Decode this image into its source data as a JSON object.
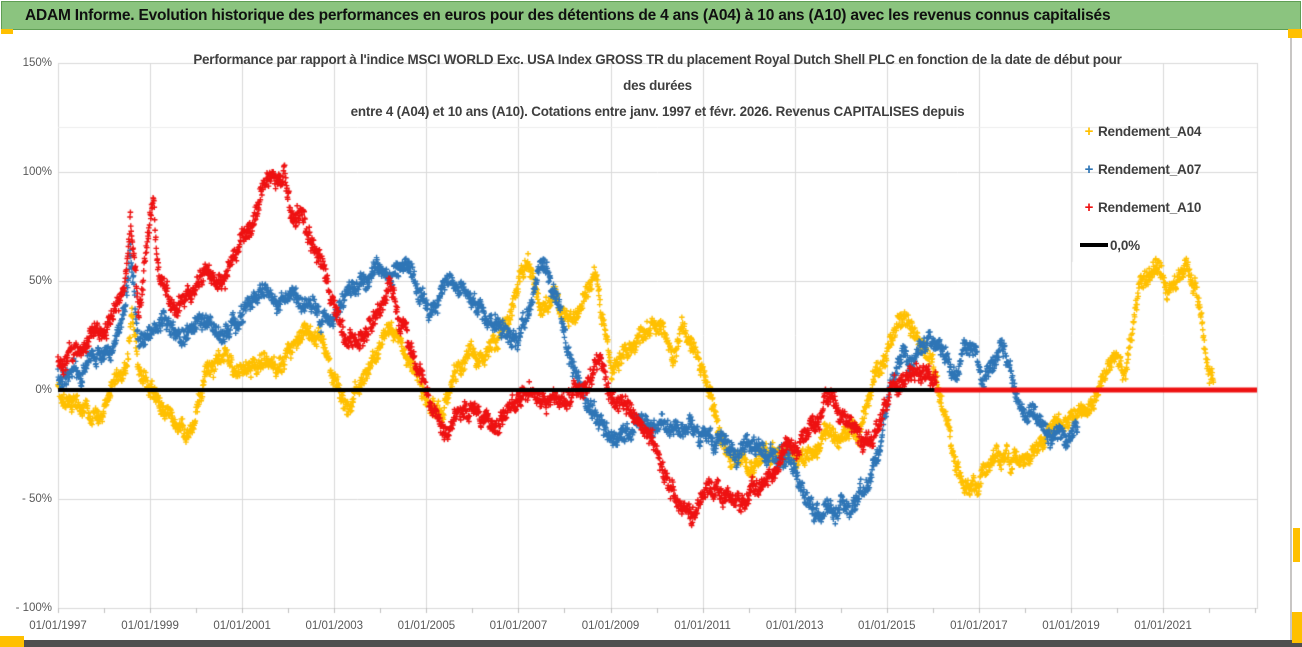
{
  "header": {
    "title": "ADAM Informe. Evolution historique des performances en euros pour des détentions de 4 ans (A04) à 10 ans (A10) avec les revenus connus capitalisés"
  },
  "chart": {
    "title_lines": [
      "Performance par rapport à l'indice MSCI WORLD Exc. USA Index GROSS TR  du placement Royal Dutch Shell PLC en fonction de la date de début pour",
      "des durées",
      "entre 4 (A04) et 10 ans (A10). Cotations entre janv. 1997 et févr. 2026. Revenus CAPITALISES depuis"
    ],
    "y_axis": {
      "unit": "%",
      "ticks": [
        {
          "value": 150,
          "label": "150%"
        },
        {
          "value": 100,
          "label": "100%"
        },
        {
          "value": 50,
          "label": "50%"
        },
        {
          "value": 0,
          "label": "0%"
        },
        {
          "value": -50,
          "label": "- 50%"
        },
        {
          "value": -100,
          "label": "- 100%"
        }
      ]
    },
    "x_axis": {
      "ticks": [
        {
          "year": 1997,
          "label": "01/01/1997"
        },
        {
          "year": 1999,
          "label": "01/01/1999"
        },
        {
          "year": 2001,
          "label": "01/01/2001"
        },
        {
          "year": 2003,
          "label": "01/01/2003"
        },
        {
          "year": 2005,
          "label": "01/01/2005"
        },
        {
          "year": 2007,
          "label": "01/01/2007"
        },
        {
          "year": 2009,
          "label": "01/01/2009"
        },
        {
          "year": 2011,
          "label": "01/01/2011"
        },
        {
          "year": 2013,
          "label": "01/01/2013"
        },
        {
          "year": 2015,
          "label": "01/01/2015"
        },
        {
          "year": 2017,
          "label": "01/01/2017"
        },
        {
          "year": 2019,
          "label": "01/01/2019"
        },
        {
          "year": 2021,
          "label": "01/01/2021"
        }
      ]
    },
    "legend": {
      "zero_line": {
        "label": "0,0%",
        "color": "#000000"
      }
    }
  },
  "chart_data": {
    "type": "scatter",
    "marker": "plus",
    "title": "Performance par rapport à l'indice MSCI WORLD Exc. USA Index GROSS TR du placement Royal Dutch Shell PLC en fonction de la date de début pour des durées entre 4 (A04) et 10 ans (A10). Cotations entre janv. 1997 et févr. 2026. Revenus CAPITALISES depuis",
    "x_axis": {
      "type": "date",
      "start": "01/01/1997",
      "end": "01/01/2023",
      "major_tick_years": 2,
      "minor_tick_years": 1,
      "grid": true
    },
    "y_axis": {
      "min": -100,
      "max": 150,
      "tick_step": 50,
      "unit": "%",
      "grid": true
    },
    "reference_line": {
      "label": "0,0%",
      "value": 0,
      "color": "#000000"
    },
    "series": [
      {
        "name": "Rendement_A04",
        "color": "#FFC000",
        "points_approx": [
          [
            1997.0,
            2
          ],
          [
            1997.3,
            -4
          ],
          [
            1997.6,
            -8
          ],
          [
            1997.9,
            -14
          ],
          [
            1998.2,
            3
          ],
          [
            1998.5,
            14
          ],
          [
            1998.6,
            38
          ],
          [
            1998.75,
            10
          ],
          [
            1999.0,
            4
          ],
          [
            1999.3,
            -6
          ],
          [
            1999.6,
            -16
          ],
          [
            1999.8,
            -22
          ],
          [
            2000.0,
            -9
          ],
          [
            2000.3,
            8
          ],
          [
            2000.6,
            15
          ],
          [
            2000.9,
            11
          ],
          [
            2001.2,
            8
          ],
          [
            2001.5,
            14
          ],
          [
            2001.8,
            12
          ],
          [
            2002.1,
            16
          ],
          [
            2002.4,
            25
          ],
          [
            2002.7,
            27
          ],
          [
            2003.0,
            6
          ],
          [
            2003.3,
            -8
          ],
          [
            2003.6,
            1
          ],
          [
            2003.9,
            16
          ],
          [
            2004.2,
            25
          ],
          [
            2004.5,
            19
          ],
          [
            2004.8,
            8
          ],
          [
            2005.1,
            -5
          ],
          [
            2005.35,
            -10
          ],
          [
            2005.6,
            6
          ],
          [
            2005.9,
            15
          ],
          [
            2006.2,
            12
          ],
          [
            2006.5,
            20
          ],
          [
            2006.8,
            30
          ],
          [
            2007.0,
            46
          ],
          [
            2007.2,
            60
          ],
          [
            2007.5,
            40
          ],
          [
            2007.8,
            46
          ],
          [
            2008.0,
            38
          ],
          [
            2008.3,
            34
          ],
          [
            2008.65,
            54
          ],
          [
            2009.0,
            6
          ],
          [
            2009.3,
            18
          ],
          [
            2009.6,
            22
          ],
          [
            2009.9,
            27
          ],
          [
            2010.15,
            30
          ],
          [
            2010.35,
            10
          ],
          [
            2010.55,
            29
          ],
          [
            2010.8,
            24
          ],
          [
            2011.0,
            8
          ],
          [
            2011.2,
            -6
          ],
          [
            2011.5,
            -25
          ],
          [
            2011.8,
            -32
          ],
          [
            2012.0,
            -37
          ],
          [
            2012.3,
            -30
          ],
          [
            2012.6,
            -26
          ],
          [
            2012.9,
            -30
          ],
          [
            2013.2,
            -32
          ],
          [
            2013.5,
            -25
          ],
          [
            2013.8,
            -18
          ],
          [
            2014.1,
            -20
          ],
          [
            2014.4,
            -21
          ],
          [
            2014.7,
            4
          ],
          [
            2015.0,
            17
          ],
          [
            2015.4,
            31
          ],
          [
            2015.7,
            24
          ],
          [
            2016.0,
            14
          ],
          [
            2016.2,
            -6
          ],
          [
            2016.5,
            -34
          ],
          [
            2016.8,
            -44
          ],
          [
            2017.1,
            -38
          ],
          [
            2017.4,
            -35
          ],
          [
            2017.7,
            -32
          ],
          [
            2018.0,
            -34
          ],
          [
            2018.3,
            -27
          ],
          [
            2018.6,
            -18
          ],
          [
            2018.9,
            -12
          ],
          [
            2019.2,
            -10
          ],
          [
            2019.5,
            -4
          ],
          [
            2019.8,
            12
          ],
          [
            2020.0,
            17
          ],
          [
            2020.15,
            3
          ],
          [
            2020.3,
            26
          ],
          [
            2020.5,
            45
          ],
          [
            2020.7,
            54
          ],
          [
            2020.9,
            56
          ],
          [
            2021.1,
            45
          ],
          [
            2021.25,
            54
          ],
          [
            2021.5,
            57
          ],
          [
            2021.7,
            49
          ],
          [
            2021.85,
            30
          ],
          [
            2022.0,
            10
          ],
          [
            2022.1,
            4
          ]
        ]
      },
      {
        "name": "Rendement_A07",
        "color": "#2E75B6",
        "points_approx": [
          [
            1997.0,
            8
          ],
          [
            1997.3,
            6
          ],
          [
            1997.6,
            10
          ],
          [
            1997.9,
            15
          ],
          [
            1998.2,
            20
          ],
          [
            1998.5,
            45
          ],
          [
            1998.57,
            66
          ],
          [
            1998.75,
            18
          ],
          [
            1999.1,
            28
          ],
          [
            1999.4,
            30
          ],
          [
            1999.7,
            25
          ],
          [
            2000.0,
            33
          ],
          [
            2000.3,
            30
          ],
          [
            2000.6,
            26
          ],
          [
            2000.9,
            30
          ],
          [
            2001.2,
            38
          ],
          [
            2001.5,
            48
          ],
          [
            2001.8,
            45
          ],
          [
            2002.1,
            42
          ],
          [
            2002.4,
            40
          ],
          [
            2002.7,
            35
          ],
          [
            2003.0,
            36
          ],
          [
            2003.3,
            45
          ],
          [
            2003.6,
            52
          ],
          [
            2003.9,
            57
          ],
          [
            2004.2,
            54
          ],
          [
            2004.5,
            60
          ],
          [
            2004.8,
            50
          ],
          [
            2005.1,
            38
          ],
          [
            2005.4,
            48
          ],
          [
            2005.6,
            52
          ],
          [
            2005.9,
            45
          ],
          [
            2006.2,
            40
          ],
          [
            2006.5,
            32
          ],
          [
            2006.8,
            25
          ],
          [
            2007.0,
            22
          ],
          [
            2007.3,
            40
          ],
          [
            2007.55,
            60
          ],
          [
            2007.8,
            45
          ],
          [
            2008.1,
            20
          ],
          [
            2008.4,
            0
          ],
          [
            2008.7,
            -15
          ],
          [
            2009.0,
            -22
          ],
          [
            2009.3,
            -18
          ],
          [
            2009.6,
            -15
          ],
          [
            2009.9,
            -16
          ],
          [
            2010.2,
            -14
          ],
          [
            2010.5,
            -16
          ],
          [
            2010.8,
            -18
          ],
          [
            2011.1,
            -20
          ],
          [
            2011.4,
            -22
          ],
          [
            2011.7,
            -25
          ],
          [
            2012.0,
            -26
          ],
          [
            2012.3,
            -28
          ],
          [
            2012.6,
            -30
          ],
          [
            2012.9,
            -35
          ],
          [
            2013.1,
            -45
          ],
          [
            2013.4,
            -55
          ],
          [
            2013.7,
            -58
          ],
          [
            2014.0,
            -55
          ],
          [
            2014.3,
            -52
          ],
          [
            2014.6,
            -46
          ],
          [
            2014.8,
            -28
          ],
          [
            2015.0,
            -8
          ],
          [
            2015.2,
            6
          ],
          [
            2015.5,
            15
          ],
          [
            2015.8,
            20
          ],
          [
            2016.0,
            24
          ],
          [
            2016.3,
            14
          ],
          [
            2016.5,
            5
          ],
          [
            2016.7,
            18
          ],
          [
            2016.9,
            22
          ],
          [
            2017.1,
            3
          ],
          [
            2017.3,
            15
          ],
          [
            2017.5,
            20
          ],
          [
            2017.7,
            8
          ],
          [
            2017.9,
            -5
          ],
          [
            2018.1,
            -10
          ],
          [
            2018.4,
            -15
          ],
          [
            2018.6,
            -21
          ],
          [
            2018.9,
            -20
          ],
          [
            2019.15,
            -18
          ]
        ]
      },
      {
        "name": "Rendement_A10",
        "color": "#EE1111",
        "points_approx": [
          [
            1997.0,
            12
          ],
          [
            1997.3,
            15
          ],
          [
            1997.6,
            20
          ],
          [
            1997.9,
            25
          ],
          [
            1998.2,
            35
          ],
          [
            1998.5,
            60
          ],
          [
            1998.57,
            78
          ],
          [
            1998.75,
            32
          ],
          [
            1999.0,
            72
          ],
          [
            1999.07,
            84
          ],
          [
            1999.2,
            50
          ],
          [
            1999.4,
            42
          ],
          [
            1999.6,
            38
          ],
          [
            1999.9,
            45
          ],
          [
            2000.2,
            55
          ],
          [
            2000.5,
            50
          ],
          [
            2000.8,
            60
          ],
          [
            2001.1,
            72
          ],
          [
            2001.4,
            88
          ],
          [
            2001.6,
            97
          ],
          [
            2001.9,
            100
          ],
          [
            2002.1,
            80
          ],
          [
            2002.25,
            85
          ],
          [
            2002.45,
            70
          ],
          [
            2002.7,
            56
          ],
          [
            2003.0,
            42
          ],
          [
            2003.3,
            28
          ],
          [
            2003.6,
            22
          ],
          [
            2003.9,
            34
          ],
          [
            2004.2,
            48
          ],
          [
            2004.5,
            30
          ],
          [
            2004.8,
            12
          ],
          [
            2005.1,
            -5
          ],
          [
            2005.4,
            -17
          ],
          [
            2005.7,
            -12
          ],
          [
            2006.0,
            -8
          ],
          [
            2006.3,
            -12
          ],
          [
            2006.6,
            -15
          ],
          [
            2006.9,
            -5
          ],
          [
            2007.2,
            -1
          ],
          [
            2007.5,
            -8
          ],
          [
            2007.8,
            -4
          ],
          [
            2008.1,
            -2
          ],
          [
            2008.5,
            0
          ],
          [
            2008.75,
            10
          ],
          [
            2009.0,
            -5
          ],
          [
            2009.3,
            -8
          ],
          [
            2009.6,
            -15
          ],
          [
            2009.9,
            -25
          ],
          [
            2010.2,
            -40
          ],
          [
            2010.5,
            -52
          ],
          [
            2010.75,
            -58
          ],
          [
            2011.0,
            -50
          ],
          [
            2011.3,
            -48
          ],
          [
            2011.6,
            -52
          ],
          [
            2011.9,
            -50
          ],
          [
            2012.2,
            -45
          ],
          [
            2012.5,
            -38
          ],
          [
            2012.8,
            -28
          ],
          [
            2013.1,
            -22
          ],
          [
            2013.4,
            -16
          ],
          [
            2013.6,
            -9
          ],
          [
            2013.8,
            -2
          ],
          [
            2014.0,
            -12
          ],
          [
            2014.3,
            -18
          ],
          [
            2014.6,
            -24
          ],
          [
            2014.9,
            -12
          ],
          [
            2015.1,
            -2
          ],
          [
            2015.4,
            5
          ],
          [
            2015.7,
            8
          ],
          [
            2015.9,
            12
          ],
          [
            2016.08,
            6
          ]
        ],
        "flat_zero_segment": {
          "from_year": 2016.12,
          "to_year": 2023.04,
          "value": 0
        }
      }
    ]
  },
  "colors": {
    "header_bg": "#8BC47F",
    "header_border": "#5F9E54",
    "grid": "#D9D9D9",
    "axis_text": "#595959",
    "title_text": "#3F3F3F",
    "zero_line": "#000000",
    "zero_line_recent": "#EE1111",
    "series_a04": "#FFC000",
    "series_a07": "#2E75B6",
    "series_a10": "#EE1111",
    "selection_handle": "#FFC000",
    "bottom_bar": "#4F4F4F"
  }
}
